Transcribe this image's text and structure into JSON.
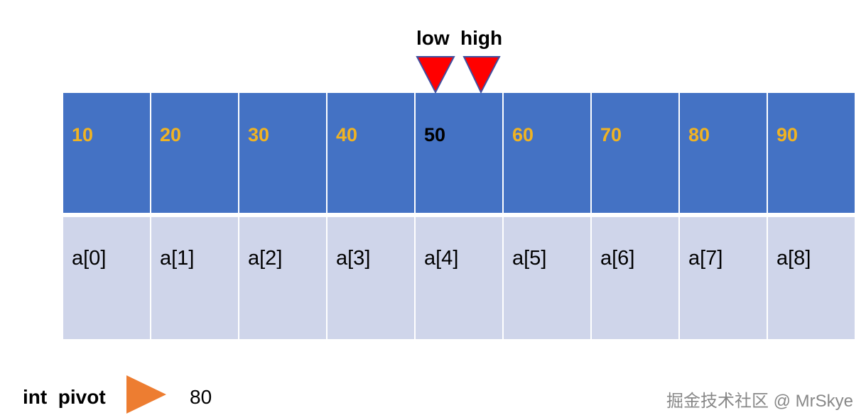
{
  "pointers": {
    "low": "low",
    "high": "high",
    "color": "#ff0000"
  },
  "values": [
    "10",
    "20",
    "30",
    "40",
    "50",
    "60",
    "70",
    "80",
    "90"
  ],
  "highlight_index": 4,
  "indices": [
    "a[0]",
    "a[1]",
    "a[2]",
    "a[3]",
    "a[4]",
    "a[5]",
    "a[6]",
    "a[7]",
    "a[8]"
  ],
  "pivot": {
    "label": "int  pivot",
    "value": "80",
    "arrow_color": "#ed7d31"
  },
  "colors": {
    "value_cell": "#4472c4",
    "index_cell": "#cfd5ea",
    "value_text": "#f0b323"
  },
  "watermark": "掘金技术社区 @ MrSkye"
}
